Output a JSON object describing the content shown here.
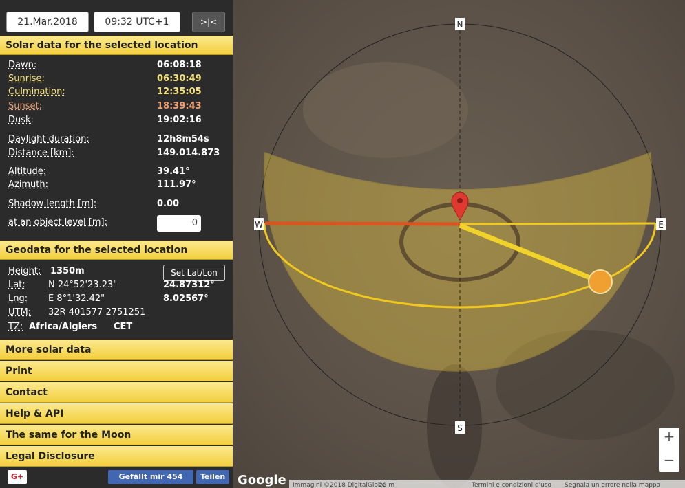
{
  "toolbar": {
    "date": "21.Mar.2018",
    "time": "09:32 UTC+1",
    "button": ">|<"
  },
  "solar": {
    "title": "Solar data for the selected location",
    "rows": [
      [
        "Dawn:",
        "06:08:18"
      ],
      [
        "Sunrise:",
        "06:30:49"
      ],
      [
        "Culmination:",
        "12:35:05"
      ],
      [
        "Sunset:",
        "18:39:43"
      ],
      [
        "Dusk:",
        "19:02:16"
      ],
      [
        "Daylight duration:",
        "12h8m54s"
      ],
      [
        "Distance [km]:",
        "149.014.873"
      ],
      [
        "Altitude:",
        "39.41°"
      ],
      [
        "Azimuth:",
        "111.97°"
      ],
      [
        "Shadow length [m]:",
        "0.00"
      ]
    ],
    "object_level_label": "at an object level [m]:",
    "object_level_value": "0"
  },
  "geo": {
    "title": "Geodata for the selected location",
    "height_label": "Height:",
    "height": "1350m",
    "set_button": "Set Lat/Lon",
    "coords": [
      [
        "Lat:",
        "N 24°52'23.23\"",
        "24.87312°"
      ],
      [
        "Lng:",
        "E 8°1'32.42\"",
        "8.02567°"
      ]
    ],
    "utm": [
      "UTM:",
      "32R 401577 2751251"
    ],
    "tz": [
      "TZ:",
      "Africa/Algiers",
      "CET"
    ]
  },
  "sections": [
    "More solar data",
    "Print",
    "Contact",
    "Help & API",
    "The same for the Moon",
    "Legal Disclosure"
  ],
  "footer": {
    "gplus": "G+",
    "like": "Gefällt mir 454",
    "share": "Teilen"
  },
  "map": {
    "compass": {
      "n": "N",
      "s": "S",
      "w": "W",
      "e": "E"
    },
    "logo": "Google",
    "attribution": "Immagini ©2018 DigitalGlobe",
    "scale": "20 m",
    "terms": "Termini e condizioni d'uso",
    "report": "Segnala un errore nella mappa",
    "zoom_in": "+",
    "zoom_out": "−"
  }
}
